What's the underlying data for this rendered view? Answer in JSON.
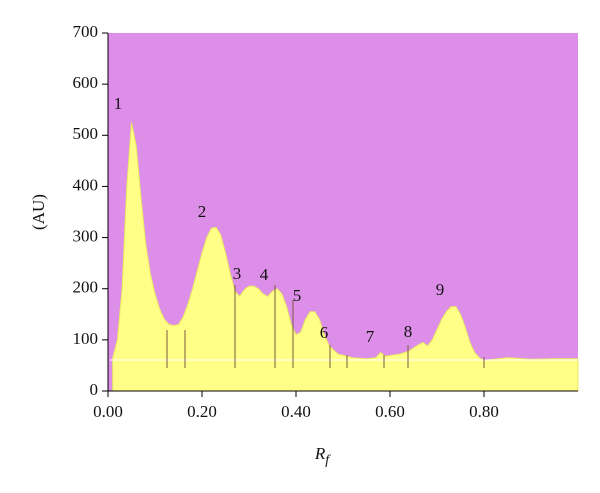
{
  "chart_data": {
    "type": "area",
    "y_label": "(AU)",
    "x_label_main": "R",
    "x_label_sub": "f",
    "peak_labels": [
      "1",
      "2",
      "3",
      "4",
      "5",
      "6",
      "7",
      "8",
      "9"
    ],
    "x": [
      0.01,
      0.02,
      0.03,
      0.04,
      0.05,
      0.06,
      0.07,
      0.08,
      0.09,
      0.1,
      0.11,
      0.12,
      0.13,
      0.14,
      0.15,
      0.16,
      0.17,
      0.18,
      0.19,
      0.2,
      0.21,
      0.22,
      0.23,
      0.24,
      0.25,
      0.26,
      0.27,
      0.28,
      0.29,
      0.3,
      0.31,
      0.32,
      0.33,
      0.34,
      0.35,
      0.36,
      0.37,
      0.38,
      0.39,
      0.4,
      0.41,
      0.42,
      0.43,
      0.44,
      0.45,
      0.46,
      0.47,
      0.48,
      0.49,
      0.5,
      0.52,
      0.55,
      0.57,
      0.58,
      0.59,
      0.62,
      0.64,
      0.66,
      0.67,
      0.68,
      0.69,
      0.7,
      0.71,
      0.72,
      0.73,
      0.74,
      0.75,
      0.76,
      0.77,
      0.78,
      0.79,
      0.8,
      0.85,
      0.9,
      0.95,
      1.0
    ],
    "values": [
      65,
      100,
      200,
      400,
      525,
      480,
      380,
      290,
      230,
      190,
      160,
      140,
      130,
      128,
      130,
      145,
      170,
      200,
      235,
      270,
      300,
      318,
      320,
      305,
      270,
      230,
      195,
      185,
      198,
      205,
      205,
      200,
      190,
      185,
      195,
      200,
      190,
      165,
      130,
      110,
      115,
      140,
      155,
      155,
      140,
      110,
      90,
      80,
      72,
      70,
      65,
      63,
      65,
      75,
      68,
      72,
      78,
      90,
      95,
      88,
      100,
      120,
      140,
      155,
      165,
      165,
      150,
      125,
      95,
      75,
      65,
      60,
      65,
      62,
      63,
      63
    ],
    "color": "#ffff88",
    "background": "#dd8ee8",
    "xlim": [
      0,
      1.0
    ],
    "xticks": [
      {
        "value": 0,
        "label": "0.00"
      },
      {
        "value": 0.2,
        "label": "0.20"
      },
      {
        "value": 0.4,
        "label": "0.40"
      },
      {
        "value": 0.6,
        "label": "0.60"
      },
      {
        "value": 0.8,
        "label": "0.80"
      }
    ],
    "ylim": [
      0,
      700
    ],
    "yticks": [
      0,
      100,
      200,
      300,
      400,
      500,
      600,
      700
    ]
  }
}
